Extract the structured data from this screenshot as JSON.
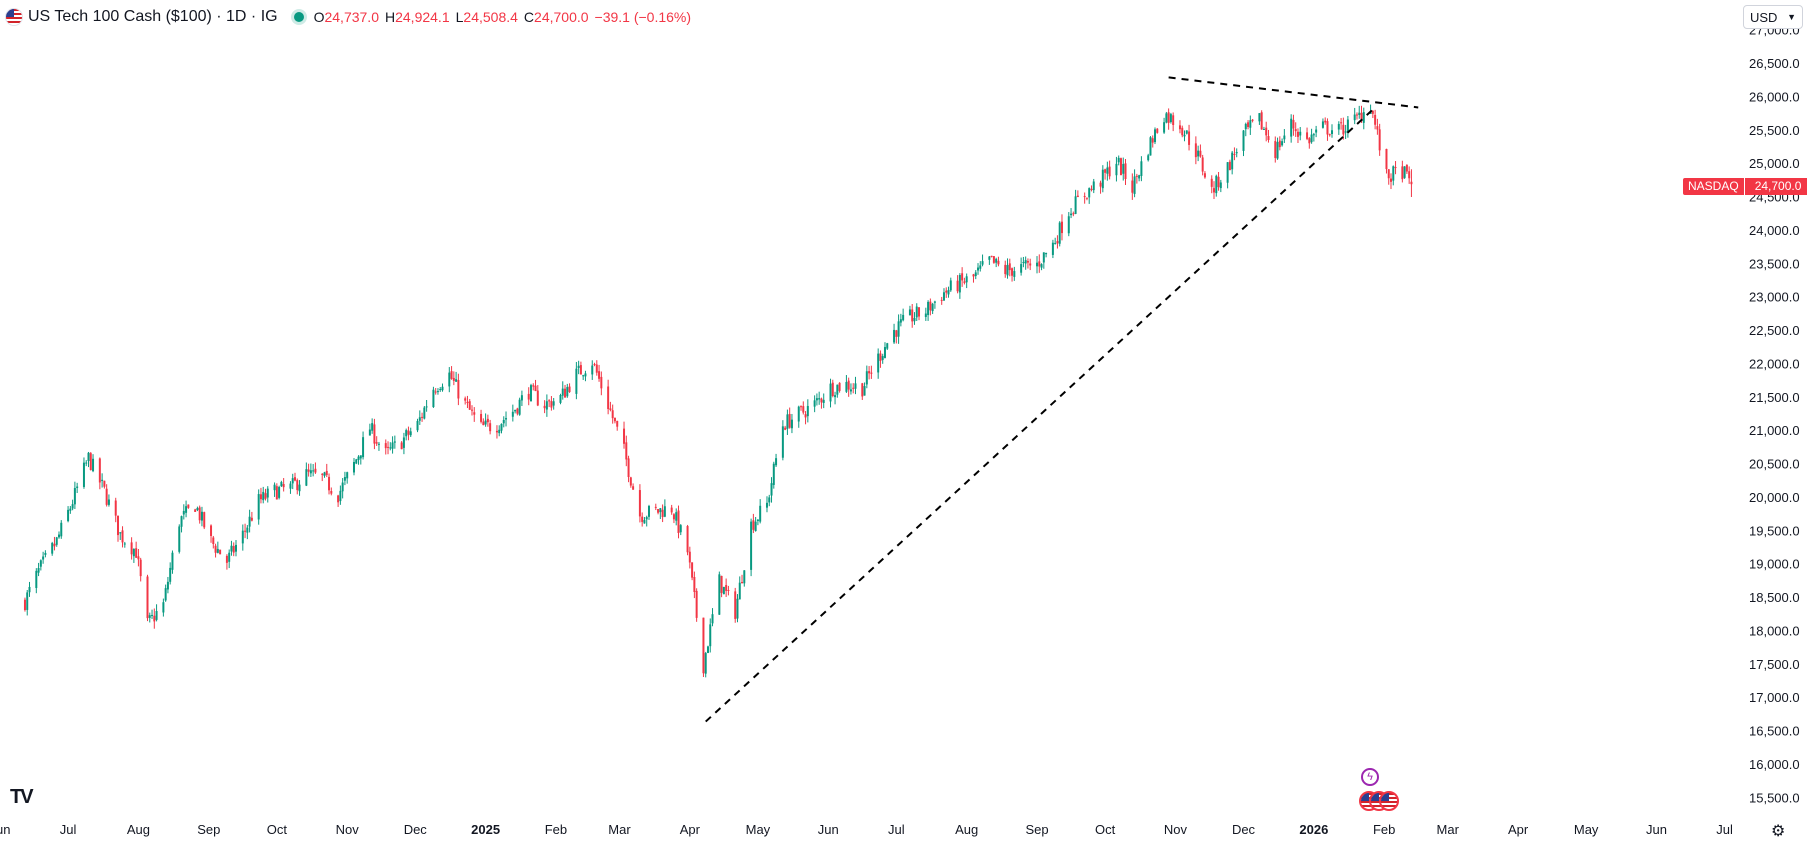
{
  "header": {
    "title": "US Tech 100 Cash ($100) · 1D · IG",
    "ohlc": [
      {
        "key": "O",
        "value": "24,737.0"
      },
      {
        "key": "H",
        "value": "24,924.1"
      },
      {
        "key": "L",
        "value": "24,508.4"
      },
      {
        "key": "C",
        "value": "24,700.0"
      }
    ],
    "change": "−39.1 (−0.16%)",
    "status": "market-open-dot"
  },
  "currency": {
    "label": "USD",
    "icon": "chevron-down-icon"
  },
  "price_tag": {
    "symbol": "NASDAQ",
    "value": "24,700.0"
  },
  "colors": {
    "up": "#089981",
    "down": "#f23645",
    "trendline": "#000000"
  },
  "icons": {
    "logo": "tradingview-logo",
    "settings": "gear-icon",
    "events": [
      "flash-event-icon",
      "us-flag-icon"
    ]
  },
  "chart_data": {
    "type": "candlestick",
    "title": "US Tech 100 Cash ($100) · 1D · IG",
    "ylim": [
      15250,
      27250
    ],
    "y_ticks": [
      15500,
      16000,
      16500,
      17000,
      17500,
      18000,
      18500,
      19000,
      19500,
      20000,
      20500,
      21000,
      21500,
      22000,
      22500,
      23000,
      23500,
      24000,
      24500,
      25000,
      25500,
      26000,
      26500,
      27000
    ],
    "y_tick_labels": [
      "15,500.0",
      "16,000.0",
      "16,500.0",
      "17,000.0",
      "17,500.0",
      "18,000.0",
      "18,500.0",
      "19,000.0",
      "19,500.0",
      "20,000.0",
      "20,500.0",
      "21,000.0",
      "21,500.0",
      "22,000.0",
      "22,500.0",
      "23,000.0",
      "23,500.0",
      "24,000.0",
      "24,500.0",
      "25,000.0",
      "25,500.0",
      "26,000.0",
      "26,500.0",
      "27,000.0"
    ],
    "x_ticks": [
      {
        "label": "Jun",
        "date": "2024-06-01",
        "bold": false
      },
      {
        "label": "Jul",
        "date": "2024-07-01",
        "bold": false
      },
      {
        "label": "Aug",
        "date": "2024-08-01",
        "bold": false
      },
      {
        "label": "Sep",
        "date": "2024-09-01",
        "bold": false
      },
      {
        "label": "Oct",
        "date": "2024-10-01",
        "bold": false
      },
      {
        "label": "Nov",
        "date": "2024-11-01",
        "bold": false
      },
      {
        "label": "Dec",
        "date": "2024-12-01",
        "bold": false
      },
      {
        "label": "2025",
        "date": "2025-01-01",
        "bold": true
      },
      {
        "label": "Feb",
        "date": "2025-02-01",
        "bold": false
      },
      {
        "label": "Mar",
        "date": "2025-03-01",
        "bold": false
      },
      {
        "label": "Apr",
        "date": "2025-04-01",
        "bold": false
      },
      {
        "label": "May",
        "date": "2025-05-01",
        "bold": false
      },
      {
        "label": "Jun",
        "date": "2025-06-01",
        "bold": false
      },
      {
        "label": "Jul",
        "date": "2025-07-01",
        "bold": false
      },
      {
        "label": "Aug",
        "date": "2025-08-01",
        "bold": false
      },
      {
        "label": "Sep",
        "date": "2025-09-01",
        "bold": false
      },
      {
        "label": "Oct",
        "date": "2025-10-01",
        "bold": false
      },
      {
        "label": "Nov",
        "date": "2025-11-01",
        "bold": false
      },
      {
        "label": "Dec",
        "date": "2025-12-01",
        "bold": false
      },
      {
        "label": "2026",
        "date": "2026-01-01",
        "bold": true
      },
      {
        "label": "Feb",
        "date": "2026-02-01",
        "bold": false
      },
      {
        "label": "Mar",
        "date": "2026-03-01",
        "bold": false
      },
      {
        "label": "Apr",
        "date": "2026-04-01",
        "bold": false
      },
      {
        "label": "May",
        "date": "2026-05-01",
        "bold": false
      },
      {
        "label": "Jun",
        "date": "2026-06-01",
        "bold": false
      },
      {
        "label": "Jul",
        "date": "2026-07-01",
        "bold": false
      }
    ],
    "xlim": [
      "2024-06-01",
      "2026-07-10"
    ],
    "closes": [
      [
        "2024-06-12",
        18450
      ],
      [
        "2024-06-18",
        18900
      ],
      [
        "2024-06-26",
        19350
      ],
      [
        "2024-07-03",
        19950
      ],
      [
        "2024-07-10",
        20600
      ],
      [
        "2024-07-17",
        20100
      ],
      [
        "2024-07-24",
        19450
      ],
      [
        "2024-07-31",
        19200
      ],
      [
        "2024-08-05",
        18100
      ],
      [
        "2024-08-12",
        18400
      ],
      [
        "2024-08-19",
        19650
      ],
      [
        "2024-08-26",
        19900
      ],
      [
        "2024-09-02",
        19350
      ],
      [
        "2024-09-09",
        19050
      ],
      [
        "2024-09-16",
        19450
      ],
      [
        "2024-09-23",
        19950
      ],
      [
        "2024-09-30",
        20100
      ],
      [
        "2024-10-07",
        20150
      ],
      [
        "2024-10-14",
        20350
      ],
      [
        "2024-10-21",
        20300
      ],
      [
        "2024-10-28",
        20050
      ],
      [
        "2024-11-04",
        20500
      ],
      [
        "2024-11-11",
        21050
      ],
      [
        "2024-11-18",
        20650
      ],
      [
        "2024-11-25",
        20850
      ],
      [
        "2024-12-02",
        21100
      ],
      [
        "2024-12-09",
        21650
      ],
      [
        "2024-12-16",
        21850
      ],
      [
        "2024-12-23",
        21400
      ],
      [
        "2024-12-30",
        21050
      ],
      [
        "2025-01-06",
        21100
      ],
      [
        "2025-01-13",
        21300
      ],
      [
        "2025-01-20",
        21600
      ],
      [
        "2025-01-27",
        21400
      ],
      [
        "2025-02-03",
        21500
      ],
      [
        "2025-02-10",
        21850
      ],
      [
        "2025-02-17",
        22050
      ],
      [
        "2025-02-24",
        21400
      ],
      [
        "2025-03-03",
        20700
      ],
      [
        "2025-03-10",
        19750
      ],
      [
        "2025-03-17",
        19800
      ],
      [
        "2025-03-24",
        19850
      ],
      [
        "2025-03-31",
        19200
      ],
      [
        "2025-04-07",
        17500
      ],
      [
        "2025-04-14",
        18750
      ],
      [
        "2025-04-21",
        18300
      ],
      [
        "2025-04-28",
        19600
      ],
      [
        "2025-05-05",
        19900
      ],
      [
        "2025-05-12",
        21100
      ],
      [
        "2025-05-19",
        21250
      ],
      [
        "2025-05-26",
        21400
      ],
      [
        "2025-06-02",
        21650
      ],
      [
        "2025-06-09",
        21700
      ],
      [
        "2025-06-16",
        21650
      ],
      [
        "2025-06-23",
        22100
      ],
      [
        "2025-06-30",
        22500
      ],
      [
        "2025-07-07",
        22700
      ],
      [
        "2025-07-14",
        22800
      ],
      [
        "2025-07-21",
        23050
      ],
      [
        "2025-07-28",
        23200
      ],
      [
        "2025-08-04",
        23300
      ],
      [
        "2025-08-11",
        23550
      ],
      [
        "2025-08-18",
        23400
      ],
      [
        "2025-08-25",
        23450
      ],
      [
        "2025-09-01",
        23500
      ],
      [
        "2025-09-08",
        23800
      ],
      [
        "2025-09-15",
        24300
      ],
      [
        "2025-09-22",
        24550
      ],
      [
        "2025-09-29",
        24750
      ],
      [
        "2025-10-06",
        25050
      ],
      [
        "2025-10-13",
        24650
      ],
      [
        "2025-10-20",
        25250
      ],
      [
        "2025-10-27",
        25750
      ],
      [
        "2025-11-03",
        25600
      ],
      [
        "2025-11-10",
        25200
      ],
      [
        "2025-11-17",
        24600
      ],
      [
        "2025-11-24",
        24950
      ],
      [
        "2025-12-01",
        25450
      ],
      [
        "2025-12-08",
        25650
      ],
      [
        "2025-12-15",
        25200
      ],
      [
        "2025-12-22",
        25600
      ],
      [
        "2025-12-29",
        25350
      ],
      [
        "2026-01-05",
        25550
      ],
      [
        "2026-01-12",
        25500
      ],
      [
        "2026-01-19",
        25650
      ],
      [
        "2026-01-26",
        25900
      ],
      [
        "2026-02-02",
        24800
      ],
      [
        "2026-02-09",
        24900
      ],
      [
        "2026-02-13",
        24700
      ]
    ],
    "trendlines": [
      {
        "from": [
          "2025-04-08",
          16650
        ],
        "to": [
          "2026-01-28",
          25850
        ],
        "style": "dashed"
      },
      {
        "from": [
          "2025-10-29",
          26300
        ],
        "to": [
          "2026-02-16",
          25850
        ],
        "style": "dashed"
      }
    ],
    "last_price": 24700.0,
    "grid": false,
    "legend": "none"
  }
}
